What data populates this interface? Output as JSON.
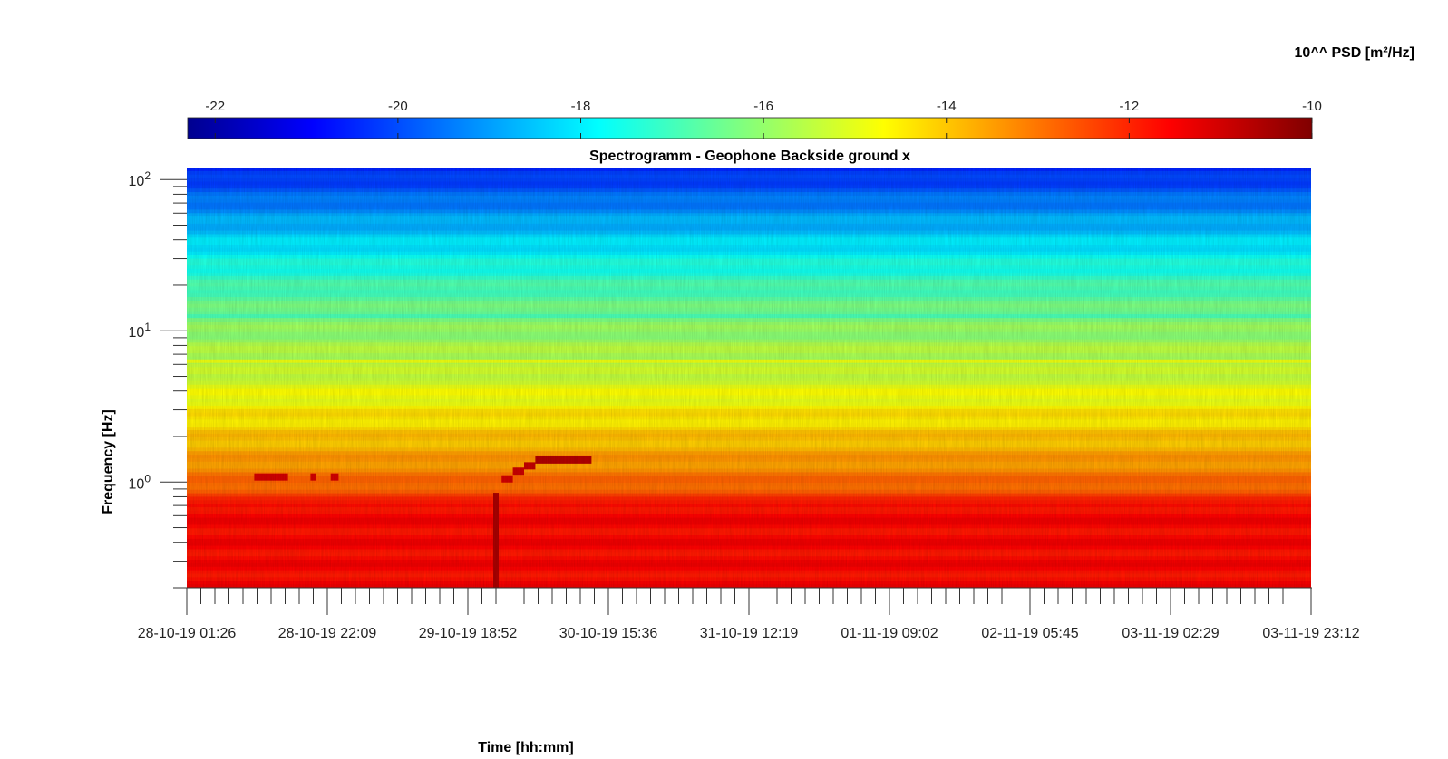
{
  "chart_data": {
    "type": "heatmap",
    "title": "Spectrogramm - Geophone Backside ground x",
    "xlabel": "Time [hh:mm]",
    "ylabel": "Frequency [Hz]",
    "x_tick_labels": [
      "28-10-19 01:26",
      "28-10-19 22:09",
      "29-10-19 18:52",
      "30-10-19 15:36",
      "31-10-19 12:19",
      "01-11-19 09:02",
      "02-11-19 05:45",
      "03-11-19 02:29",
      "03-11-19 23:12"
    ],
    "y_scale": "log",
    "ylim": [
      0.2,
      120
    ],
    "y_tick_exponents": [
      0,
      1,
      2
    ],
    "y_tick_base": "10",
    "colorbar": {
      "label": "10^^ PSD [m²/Hz]",
      "location": "top",
      "colormap": "jet",
      "clim": [
        -22.3,
        -10
      ],
      "tick_labels": [
        "-22",
        "-20",
        "-18",
        "-16",
        "-14",
        "-12",
        "-10"
      ],
      "tick_values": [
        -22,
        -20,
        -18,
        -16,
        -14,
        -12,
        -10
      ]
    },
    "features": {
      "low_freq_band": {
        "freq_range": [
          0.2,
          0.7
        ],
        "value": -11.6
      },
      "mid_band": {
        "freq_range": [
          0.7,
          5
        ],
        "value": -14.5
      },
      "high_band": {
        "freq_range": [
          5,
          120
        ],
        "value": -18.0
      },
      "line_6_3hz": {
        "freq": 6.3,
        "value": -14.8
      },
      "line_12_5hz": {
        "freq": 12.5,
        "value": -16.8
      },
      "event_segments": [
        {
          "x_start": 0.06,
          "x_end": 0.08,
          "freq": 1.08,
          "value": -11.0
        },
        {
          "x_start": 0.08,
          "x_end": 0.09,
          "freq": 1.08,
          "value": -11.0
        },
        {
          "x_start": 0.11,
          "x_end": 0.115,
          "freq": 1.08,
          "value": -11.0
        },
        {
          "x_start": 0.128,
          "x_end": 0.135,
          "freq": 1.08,
          "value": -11.0
        },
        {
          "x_start": 0.28,
          "x_end": 0.29,
          "freq": 1.05,
          "value": -11.0
        },
        {
          "x_start": 0.29,
          "x_end": 0.3,
          "freq": 1.18,
          "value": -10.9
        },
        {
          "x_start": 0.3,
          "x_end": 0.31,
          "freq": 1.28,
          "value": -10.8
        },
        {
          "x_start": 0.31,
          "x_end": 0.36,
          "freq": 1.4,
          "value": -10.6
        }
      ],
      "vertical_events": [
        {
          "x": 0.275,
          "freq_range": [
            0.2,
            0.85
          ],
          "value": -10.5
        }
      ]
    }
  }
}
